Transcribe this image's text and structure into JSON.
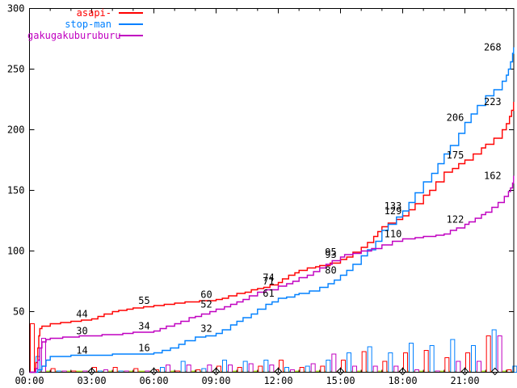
{
  "chart_data": {
    "type": "line",
    "title": "",
    "background": "#ffffff",
    "border_color": "#000000",
    "text_color": "#000000",
    "x_axis": {
      "label": "",
      "unit": "time",
      "range_hours": [
        0,
        23.35
      ],
      "major_tick_interval_hours": 3,
      "minor_tick_interval_hours": 1,
      "tick_labels": [
        "00:00",
        "03:00",
        "06:00",
        "09:00",
        "12:00",
        "15:00",
        "18:00",
        "21:00"
      ]
    },
    "y_axis": {
      "label": "",
      "range": [
        0,
        300
      ],
      "tick_interval": 50,
      "tick_labels": [
        "0",
        "50",
        "100",
        "150",
        "200",
        "250",
        "300"
      ]
    },
    "grid": false,
    "legend_position": "top-left",
    "series": [
      {
        "name": "asapi-",
        "color": "#ff0000",
        "style": "steps",
        "points": [
          [
            0,
            0
          ],
          [
            0.25,
            3
          ],
          [
            0.3,
            8
          ],
          [
            0.4,
            20
          ],
          [
            0.45,
            30
          ],
          [
            0.5,
            36
          ],
          [
            0.6,
            38
          ],
          [
            1,
            40
          ],
          [
            1.5,
            41
          ],
          [
            2,
            42
          ],
          [
            2.5,
            43
          ],
          [
            3,
            44
          ],
          [
            3.3,
            46
          ],
          [
            3.6,
            48
          ],
          [
            4,
            50
          ],
          [
            4.3,
            51
          ],
          [
            4.7,
            52
          ],
          [
            5,
            53
          ],
          [
            5.5,
            54
          ],
          [
            6,
            55
          ],
          [
            6.5,
            56
          ],
          [
            7,
            57
          ],
          [
            7.5,
            58
          ],
          [
            8.2,
            59
          ],
          [
            9,
            60
          ],
          [
            9.3,
            61
          ],
          [
            9.6,
            63
          ],
          [
            10,
            65
          ],
          [
            10.4,
            66
          ],
          [
            10.7,
            68
          ],
          [
            11,
            69
          ],
          [
            11.3,
            70
          ],
          [
            11.6,
            72
          ],
          [
            12,
            74
          ],
          [
            12.2,
            77
          ],
          [
            12.5,
            80
          ],
          [
            12.8,
            82
          ],
          [
            13,
            84
          ],
          [
            13.4,
            86
          ],
          [
            13.8,
            87
          ],
          [
            14,
            88
          ],
          [
            14.5,
            90
          ],
          [
            15,
            93
          ],
          [
            15.3,
            95
          ],
          [
            15.6,
            99
          ],
          [
            16,
            103
          ],
          [
            16.3,
            107
          ],
          [
            16.6,
            112
          ],
          [
            16.8,
            116
          ],
          [
            17,
            120
          ],
          [
            17.3,
            123
          ],
          [
            17.7,
            126
          ],
          [
            18,
            129
          ],
          [
            18.3,
            134
          ],
          [
            18.6,
            139
          ],
          [
            19,
            146
          ],
          [
            19.3,
            150
          ],
          [
            19.6,
            157
          ],
          [
            20,
            165
          ],
          [
            20.4,
            168
          ],
          [
            20.7,
            172
          ],
          [
            21,
            175
          ],
          [
            21.4,
            180
          ],
          [
            21.8,
            185
          ],
          [
            22,
            188
          ],
          [
            22.4,
            193
          ],
          [
            22.8,
            200
          ],
          [
            23,
            205
          ],
          [
            23.15,
            211
          ],
          [
            23.25,
            216
          ],
          [
            23.35,
            223
          ]
        ],
        "value_labels": [
          [
            3,
            44
          ],
          [
            6,
            55
          ],
          [
            9,
            60
          ],
          [
            12,
            74
          ],
          [
            15,
            93
          ],
          [
            18,
            129
          ],
          [
            21,
            175
          ],
          [
            23.35,
            223
          ]
        ]
      },
      {
        "name": "stop-man",
        "color": "#0080ff",
        "style": "steps",
        "points": [
          [
            0,
            0
          ],
          [
            0.4,
            2
          ],
          [
            0.6,
            5
          ],
          [
            0.8,
            10
          ],
          [
            1,
            13
          ],
          [
            2,
            14
          ],
          [
            3,
            14
          ],
          [
            4,
            15
          ],
          [
            5,
            15
          ],
          [
            6,
            16
          ],
          [
            6.4,
            18
          ],
          [
            6.8,
            20
          ],
          [
            7.2,
            23
          ],
          [
            7.5,
            26
          ],
          [
            8,
            29
          ],
          [
            8.5,
            30
          ],
          [
            9,
            32
          ],
          [
            9.3,
            35
          ],
          [
            9.7,
            39
          ],
          [
            10,
            42
          ],
          [
            10.3,
            45
          ],
          [
            10.7,
            48
          ],
          [
            11,
            52
          ],
          [
            11.4,
            56
          ],
          [
            11.7,
            58
          ],
          [
            12,
            61
          ],
          [
            12.4,
            62
          ],
          [
            12.8,
            64
          ],
          [
            13,
            65
          ],
          [
            13.5,
            67
          ],
          [
            14,
            70
          ],
          [
            14.4,
            73
          ],
          [
            14.7,
            76
          ],
          [
            15,
            80
          ],
          [
            15.3,
            84
          ],
          [
            15.6,
            89
          ],
          [
            16,
            96
          ],
          [
            16.3,
            101
          ],
          [
            16.7,
            108
          ],
          [
            17,
            117
          ],
          [
            17.3,
            122
          ],
          [
            17.7,
            128
          ],
          [
            18,
            133
          ],
          [
            18.3,
            140
          ],
          [
            18.6,
            148
          ],
          [
            19,
            157
          ],
          [
            19.4,
            164
          ],
          [
            19.7,
            172
          ],
          [
            20,
            180
          ],
          [
            20.3,
            187
          ],
          [
            20.7,
            197
          ],
          [
            21,
            206
          ],
          [
            21.3,
            213
          ],
          [
            21.6,
            220
          ],
          [
            22,
            228
          ],
          [
            22.4,
            233
          ],
          [
            22.8,
            240
          ],
          [
            23,
            245
          ],
          [
            23.1,
            250
          ],
          [
            23.2,
            256
          ],
          [
            23.3,
            263
          ],
          [
            23.35,
            268
          ]
        ],
        "value_labels": [
          [
            3,
            14
          ],
          [
            6,
            16
          ],
          [
            9,
            32
          ],
          [
            12,
            61
          ],
          [
            15,
            80
          ],
          [
            18,
            133
          ],
          [
            21,
            206
          ],
          [
            23.35,
            268
          ]
        ]
      },
      {
        "name": "gakugakuburuburu",
        "color": "#c000c0",
        "style": "steps",
        "points": [
          [
            0,
            0
          ],
          [
            0.3,
            3
          ],
          [
            0.4,
            10
          ],
          [
            0.5,
            20
          ],
          [
            0.6,
            25
          ],
          [
            0.8,
            27
          ],
          [
            1,
            28
          ],
          [
            1.6,
            29
          ],
          [
            2.4,
            30
          ],
          [
            3.5,
            31
          ],
          [
            4,
            31
          ],
          [
            4.5,
            32
          ],
          [
            5,
            33
          ],
          [
            6,
            34
          ],
          [
            6.3,
            36
          ],
          [
            6.6,
            38
          ],
          [
            7,
            40
          ],
          [
            7.3,
            42
          ],
          [
            7.7,
            45
          ],
          [
            8,
            46
          ],
          [
            8.3,
            48
          ],
          [
            8.7,
            50
          ],
          [
            9,
            52
          ],
          [
            9.4,
            54
          ],
          [
            9.7,
            56
          ],
          [
            10,
            58
          ],
          [
            10.3,
            60
          ],
          [
            10.6,
            63
          ],
          [
            11,
            66
          ],
          [
            11.4,
            68
          ],
          [
            12,
            71
          ],
          [
            12.4,
            73
          ],
          [
            12.7,
            75
          ],
          [
            13,
            78
          ],
          [
            13.4,
            80
          ],
          [
            13.7,
            83
          ],
          [
            14,
            86
          ],
          [
            14.3,
            89
          ],
          [
            14.6,
            92
          ],
          [
            15,
            95
          ],
          [
            15.2,
            97
          ],
          [
            15.6,
            98
          ],
          [
            16,
            100
          ],
          [
            16.5,
            102
          ],
          [
            17,
            105
          ],
          [
            17.5,
            108
          ],
          [
            18,
            110
          ],
          [
            18.6,
            111
          ],
          [
            19,
            112
          ],
          [
            19.6,
            113
          ],
          [
            20,
            114
          ],
          [
            20.3,
            117
          ],
          [
            20.6,
            119
          ],
          [
            21,
            122
          ],
          [
            21.2,
            124
          ],
          [
            21.5,
            127
          ],
          [
            21.8,
            130
          ],
          [
            22,
            132
          ],
          [
            22.3,
            136
          ],
          [
            22.6,
            140
          ],
          [
            22.9,
            145
          ],
          [
            23.1,
            149
          ],
          [
            23.2,
            152
          ],
          [
            23.3,
            156
          ],
          [
            23.35,
            162
          ]
        ],
        "value_labels": [
          [
            3,
            30
          ],
          [
            6,
            34
          ],
          [
            9,
            52
          ],
          [
            12,
            71
          ],
          [
            15,
            95
          ],
          [
            18,
            110
          ],
          [
            21,
            122
          ],
          [
            23.35,
            162
          ]
        ]
      }
    ],
    "hourly_bars": {
      "style": "outlined-boxes",
      "fill": "#ffffff",
      "hours": [
        0,
        1,
        2,
        3,
        4,
        5,
        6,
        7,
        8,
        9,
        10,
        11,
        12,
        13,
        14,
        15,
        16,
        17,
        18,
        19,
        20,
        21,
        22,
        23
      ],
      "series": [
        {
          "name": "asapi-",
          "color": "#ff0000",
          "values": [
            40,
            3,
            1,
            4,
            4,
            3,
            2,
            1,
            2,
            5,
            4,
            5,
            10,
            4,
            5,
            10,
            17,
            9,
            16,
            18,
            12,
            16,
            30,
            2
          ]
        },
        {
          "name": "stop-man",
          "color": "#0080ff",
          "values": [
            13,
            1,
            0,
            1,
            1,
            0,
            4,
            9,
            3,
            10,
            9,
            10,
            4,
            5,
            10,
            16,
            21,
            16,
            24,
            22,
            27,
            22,
            35,
            5
          ]
        },
        {
          "name": "gakugakuburuburu",
          "color": "#c000c0",
          "values": [
            28,
            1,
            1,
            2,
            1,
            1,
            6,
            6,
            6,
            6,
            7,
            6,
            2,
            7,
            15,
            5,
            5,
            5,
            2,
            1,
            9,
            9,
            30,
            1
          ]
        }
      ]
    },
    "baseline": {
      "value": 0,
      "color": "#b4e432",
      "marker": "diamond",
      "marker_color": "#000000",
      "marker_hours": [
        3,
        6,
        9,
        12,
        15,
        18,
        21,
        22.45
      ]
    }
  }
}
